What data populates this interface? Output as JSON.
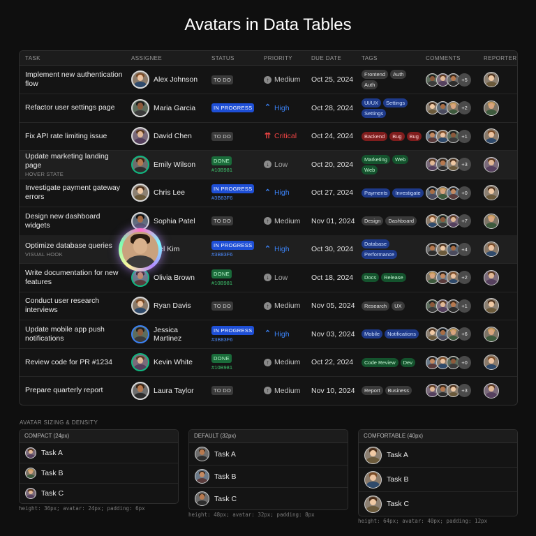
{
  "title": "Avatars in Data Tables",
  "columns": [
    "TASK",
    "ASSIGNEE",
    "STATUS",
    "PRIORITY",
    "DUE DATE",
    "TAGS",
    "COMMENTS",
    "REPORTER"
  ],
  "rows": [
    {
      "task": "Implement new authentication flow",
      "note": "",
      "assignee": "Alex Johnson",
      "status": "TO DO",
      "status_kind": "todo",
      "hex": "",
      "priority": "Medium",
      "priority_kind": "medium",
      "due": "Oct 25, 2024",
      "tags": [
        {
          "label": "Frontend",
          "color": "gray"
        },
        {
          "label": "Auth",
          "color": "gray"
        },
        {
          "label": "Auth",
          "color": "gray"
        }
      ],
      "more": "+5",
      "highlight": false,
      "ring": "#d9d9d9"
    },
    {
      "task": "Refactor user settings page",
      "note": "",
      "assignee": "Maria Garcia",
      "status": "IN PROGRESS",
      "status_kind": "prog",
      "hex": "",
      "priority": "High",
      "priority_kind": "high",
      "due": "Oct 28, 2024",
      "tags": [
        {
          "label": "UI/UX",
          "color": "blue"
        },
        {
          "label": "Settings",
          "color": "blue"
        },
        {
          "label": "Settings",
          "color": "blue"
        }
      ],
      "more": "+2",
      "highlight": false,
      "ring": "#d9d9d9"
    },
    {
      "task": "Fix API rate limiting issue",
      "note": "",
      "assignee": "David Chen",
      "status": "TO DO",
      "status_kind": "todo",
      "hex": "",
      "priority": "Critical",
      "priority_kind": "critical",
      "due": "Oct 24, 2024",
      "tags": [
        {
          "label": "Backend",
          "color": "red"
        },
        {
          "label": "Bug",
          "color": "red"
        },
        {
          "label": "Bug",
          "color": "red"
        }
      ],
      "more": "+1",
      "highlight": false,
      "ring": "#d9d9d9"
    },
    {
      "task": "Update marketing landing page",
      "note": "HOVER STATE",
      "assignee": "Emily Wilson",
      "status": "DONE",
      "status_kind": "done",
      "hex": "#10B981",
      "priority": "Low",
      "priority_kind": "low",
      "due": "Oct 20, 2024",
      "tags": [
        {
          "label": "Marketing",
          "color": "green"
        },
        {
          "label": "Web",
          "color": "green"
        },
        {
          "label": "Web",
          "color": "green"
        }
      ],
      "more": "+3",
      "highlight": true,
      "ring": "#10B981"
    },
    {
      "task": "Investigate payment gateway errors",
      "note": "",
      "assignee": "Chris Lee",
      "status": "IN PROGRESS",
      "status_kind": "prog",
      "hex": "#3B83F6",
      "priority": "High",
      "priority_kind": "high",
      "due": "Oct 27, 2024",
      "tags": [
        {
          "label": "Payments",
          "color": "blue"
        },
        {
          "label": "Investigate",
          "color": "blue"
        }
      ],
      "more": "+0",
      "highlight": false,
      "ring": "#d9d9d9"
    },
    {
      "task": "Design new dashboard widgets",
      "note": "",
      "assignee": "Sophia Patel",
      "status": "TO DO",
      "status_kind": "todo",
      "hex": "",
      "priority": "Medium",
      "priority_kind": "medium",
      "due": "Nov 01, 2024",
      "tags": [
        {
          "label": "Design",
          "color": "gray"
        },
        {
          "label": "Dashboard",
          "color": "gray"
        }
      ],
      "more": "+7",
      "highlight": false,
      "ring": "#d9d9d9"
    },
    {
      "task": "Optimize database queries",
      "note": "VISUAL HOOK",
      "assignee": "niel Kim",
      "status": "IN PROGRESS",
      "status_kind": "prog",
      "hex": "#3B83F6",
      "priority": "High",
      "priority_kind": "high",
      "due": "Oct 30, 2024",
      "tags": [
        {
          "label": "Database",
          "color": "blue"
        },
        {
          "label": "Performance",
          "color": "blue"
        }
      ],
      "more": "+4",
      "highlight": true,
      "ring": "#d9d9d9",
      "holo": true
    },
    {
      "task": "Write documentation for new features",
      "note": "",
      "assignee": "Olivia Brown",
      "status": "DONE",
      "status_kind": "done",
      "hex": "#10B981",
      "priority": "Low",
      "priority_kind": "low",
      "due": "Oct 18, 2024",
      "tags": [
        {
          "label": "Docs",
          "color": "green"
        },
        {
          "label": "Release",
          "color": "green"
        }
      ],
      "more": "+2",
      "highlight": false,
      "ring": "#10B981"
    },
    {
      "task": "Conduct user research interviews",
      "note": "",
      "assignee": "Ryan Davis",
      "status": "TO DO",
      "status_kind": "todo",
      "hex": "",
      "priority": "Medium",
      "priority_kind": "medium",
      "due": "Nov 05, 2024",
      "tags": [
        {
          "label": "Research",
          "color": "gray"
        },
        {
          "label": "UX",
          "color": "gray"
        }
      ],
      "more": "+1",
      "highlight": false,
      "ring": "#d9d9d9"
    },
    {
      "task": "Update mobile app push notifications",
      "note": "",
      "assignee": "Jessica Martinez",
      "status": "IN PROGRESS",
      "status_kind": "prog",
      "hex": "#3B83F6",
      "priority": "High",
      "priority_kind": "high",
      "due": "Nov 03, 2024",
      "tags": [
        {
          "label": "Mobile",
          "color": "blue"
        },
        {
          "label": "Notifications",
          "color": "blue"
        }
      ],
      "more": "+6",
      "highlight": false,
      "ring": "#3B82F6"
    },
    {
      "task": "Review code for PR #1234",
      "note": "",
      "assignee": "Kevin White",
      "status": "DONE",
      "status_kind": "done",
      "hex": "#10B981",
      "priority": "Medium",
      "priority_kind": "medium",
      "due": "Oct 22, 2024",
      "tags": [
        {
          "label": "Code Review",
          "color": "green"
        },
        {
          "label": "Dev",
          "color": "green"
        }
      ],
      "more": "+0",
      "highlight": false,
      "ring": "#10B981"
    },
    {
      "task": "Prepare quarterly report",
      "note": "",
      "assignee": "Laura Taylor",
      "status": "TO DO",
      "status_kind": "todo",
      "hex": "",
      "priority": "Medium",
      "priority_kind": "medium",
      "due": "Nov 10, 2024",
      "tags": [
        {
          "label": "Report",
          "color": "gray"
        },
        {
          "label": "Business",
          "color": "gray"
        }
      ],
      "more": "+3",
      "highlight": false,
      "ring": "#d9d9d9"
    }
  ],
  "density": {
    "section_label": "AVATAR SIZING & DENSITY",
    "panels": [
      {
        "title": "COMPACT (24px)",
        "items": [
          "Task A",
          "Task B",
          "Task C"
        ],
        "spec": "height: 36px; avatar: 24px; padding: 6px"
      },
      {
        "title": "DEFAULT (32px)",
        "items": [
          "Task A",
          "Task B",
          "Task C"
        ],
        "spec": "height: 48px; avatar: 32px; padding: 8px"
      },
      {
        "title": "COMFORTABLE (40px)",
        "items": [
          "Task A",
          "Task B",
          "Task C"
        ],
        "spec": "height: 64px; avatar: 40px; padding: 12px"
      }
    ]
  },
  "icons": {
    "priority_medium": "arrow-up-circle-icon",
    "priority_low": "arrow-down-circle-icon",
    "priority_high": "double-chevron-up-icon",
    "priority_critical": "flame-arrow-icon"
  }
}
